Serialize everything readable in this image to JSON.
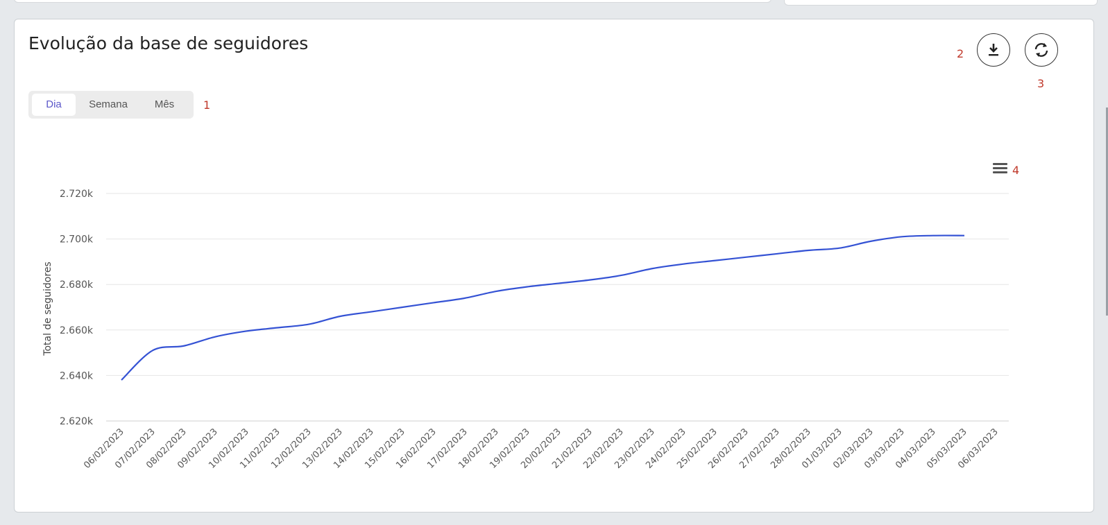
{
  "card": {
    "title": "Evolução da base de seguidores"
  },
  "period_tabs": [
    {
      "label": "Dia",
      "active": true
    },
    {
      "label": "Semana",
      "active": false
    },
    {
      "label": "Mês",
      "active": false
    }
  ],
  "annotations": {
    "period_tabs": "1",
    "download_button": "2",
    "refresh_button": "3",
    "chart_menu": "4"
  },
  "icons": {
    "download": "download-icon",
    "refresh": "refresh-icon",
    "chart_menu": "hamburger-menu-icon"
  },
  "colors": {
    "series_line": "#3452d4",
    "active_tab_text": "#5b57c9",
    "annotation": "#c0392b"
  },
  "chart_data": {
    "type": "line",
    "ylabel": "Total de seguidores",
    "ylim": [
      2620,
      2720
    ],
    "y_ticks": [
      2720,
      2700,
      2680,
      2660,
      2640,
      2620
    ],
    "y_tick_labels": [
      "2.720k",
      "2.700k",
      "2.680k",
      "2.660k",
      "2.640k",
      "2.620k"
    ],
    "grid": true,
    "categories": [
      "06/02/2023",
      "07/02/2023",
      "08/02/2023",
      "09/02/2023",
      "10/02/2023",
      "11/02/2023",
      "12/02/2023",
      "13/02/2023",
      "14/02/2023",
      "15/02/2023",
      "16/02/2023",
      "17/02/2023",
      "18/02/2023",
      "19/02/2023",
      "20/02/2023",
      "21/02/2023",
      "22/02/2023",
      "23/02/2023",
      "24/02/2023",
      "25/02/2023",
      "26/02/2023",
      "27/02/2023",
      "28/02/2023",
      "01/03/2023",
      "02/03/2023",
      "03/03/2023",
      "04/03/2023",
      "05/03/2023",
      "06/03/2023"
    ],
    "series": [
      {
        "values": [
          2638,
          2651,
          2653,
          2657,
          2659.5,
          2661,
          2662.5,
          2666,
          2668,
          2670,
          2672,
          2674,
          2677,
          2679,
          2680.5,
          2682,
          2684,
          2687,
          2689,
          2690.5,
          2692,
          2693.5,
          2695,
          2696,
          2699,
          2701,
          2701.5,
          2701.5,
          null
        ]
      }
    ]
  }
}
